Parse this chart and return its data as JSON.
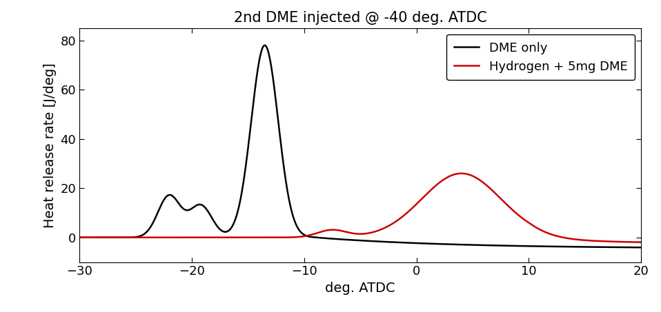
{
  "title": "2nd DME injected @ -40 deg. ATDC",
  "xlabel": "deg. ATDC",
  "ylabel": "Heat release rate [J/deg]",
  "xlim": [
    -30,
    20
  ],
  "ylim": [
    -10,
    85
  ],
  "yticks": [
    0,
    20,
    40,
    60,
    80
  ],
  "xticks": [
    -30,
    -20,
    -10,
    0,
    10,
    20
  ],
  "legend_labels": [
    "DME only",
    "Hydrogen + 5mg DME"
  ],
  "line_colors": [
    "#000000",
    "#cc0000"
  ],
  "background_color": "#ffffff",
  "title_fontsize": 15,
  "label_fontsize": 14,
  "tick_fontsize": 13,
  "legend_fontsize": 13
}
